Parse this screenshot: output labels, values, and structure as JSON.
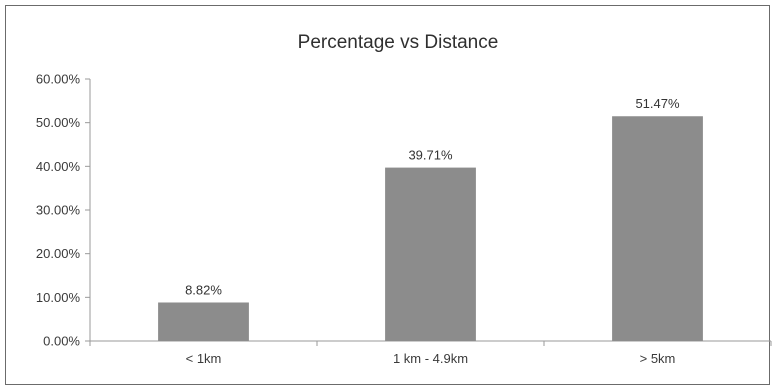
{
  "chart_data": {
    "type": "bar",
    "title": "Percentage vs Distance",
    "xlabel": "",
    "ylabel": "",
    "categories": [
      "< 1km",
      "1 km - 4.9km",
      "> 5km"
    ],
    "values": [
      8.82,
      39.71,
      51.47
    ],
    "data_labels": [
      "8.82%",
      "39.71%",
      "51.47%"
    ],
    "y_ticks": [
      "0.00%",
      "10.00%",
      "20.00%",
      "30.00%",
      "40.00%",
      "50.00%",
      "60.00%"
    ],
    "ylim": [
      0,
      60
    ],
    "grid": false,
    "legend": "none",
    "bar_color": "#8c8c8c"
  }
}
